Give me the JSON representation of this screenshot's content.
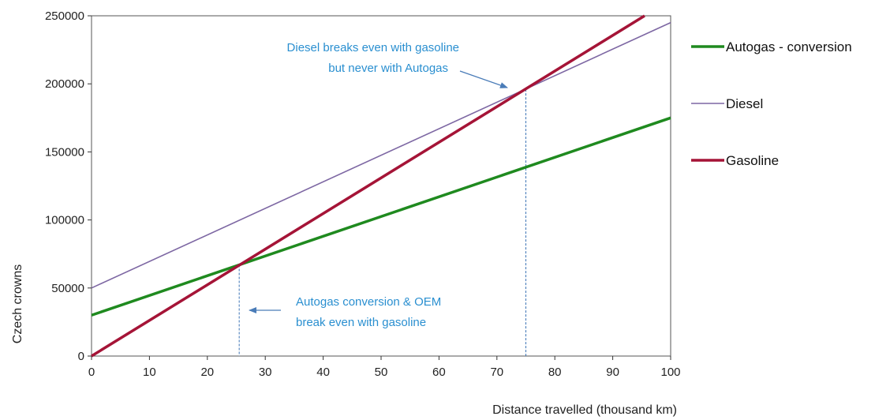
{
  "colors": {
    "autogas": "#1f8a1f",
    "diesel": "#7d67a3",
    "gasoline": "#a51437",
    "annotation": "#2a8fd0",
    "arrow": "#4a7cb8",
    "guide": "#3b73b5",
    "axis": "#333333"
  },
  "chart_data": {
    "type": "line",
    "title": "",
    "xlabel": "Distance travelled (thousand km)",
    "ylabel": "Czech crowns",
    "xlim": [
      0,
      100
    ],
    "ylim": [
      0,
      250000
    ],
    "x_ticks": [
      "0",
      "10",
      "20",
      "30",
      "40",
      "50",
      "60",
      "70",
      "80",
      "90",
      "100"
    ],
    "y_ticks": [
      "0",
      "50000",
      "100000",
      "150000",
      "200000",
      "250000"
    ],
    "grid": false,
    "legend_position": "right",
    "series": [
      {
        "name": "Autogas - conversion",
        "x": [
          0,
          100
        ],
        "y": [
          30000,
          175000
        ],
        "color_key": "autogas",
        "width": "thick"
      },
      {
        "name": "Diesel",
        "x": [
          0,
          100
        ],
        "y": [
          50000,
          245000
        ],
        "color_key": "diesel",
        "width": "thin"
      },
      {
        "name": "Gasoline",
        "x": [
          0,
          95.5
        ],
        "y": [
          0,
          250000
        ],
        "color_key": "gasoline",
        "width": "thick"
      }
    ],
    "guides": [
      {
        "x": 25.5,
        "y": 67000
      },
      {
        "x": 75,
        "y": 196000
      }
    ],
    "annotations": [
      {
        "lines": [
          "Diesel breaks even with gasoline",
          "but never with Autogas"
        ]
      },
      {
        "lines": [
          "Autogas conversion & OEM",
          "break even with gasoline"
        ]
      }
    ]
  }
}
